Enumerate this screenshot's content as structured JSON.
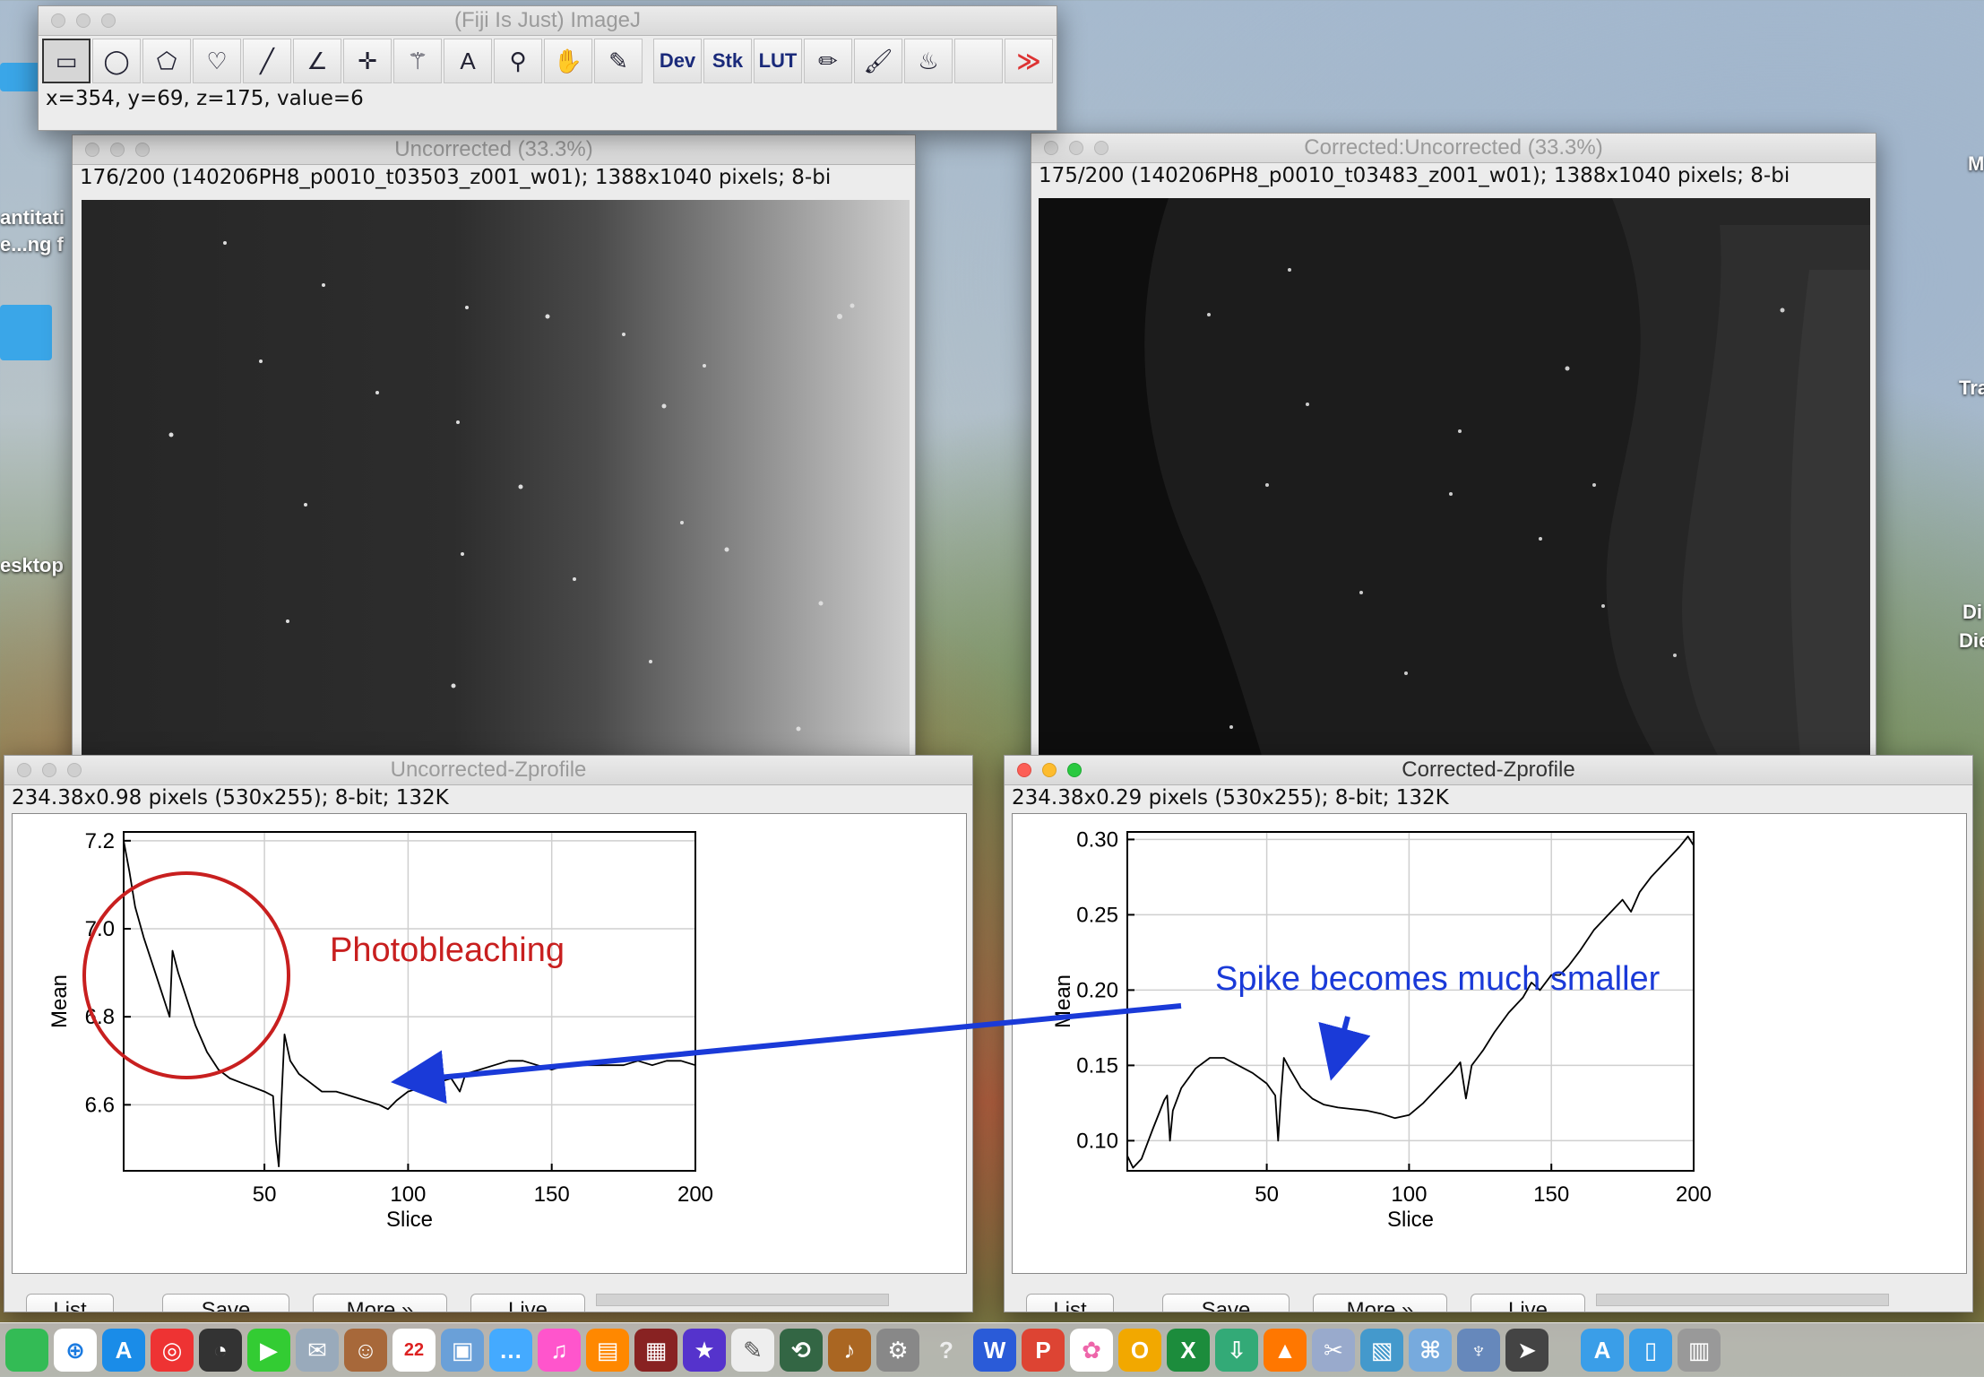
{
  "desktop": {
    "labels": [
      "antitati",
      "e...ng f",
      "esktop",
      "M",
      "Tra",
      "Di",
      "Die"
    ]
  },
  "imagej": {
    "title": "(Fiji Is Just) ImageJ",
    "status": "x=354, y=69, z=175, value=6",
    "tools": [
      {
        "name": "rectangle-tool-icon",
        "glyph": "▭"
      },
      {
        "name": "oval-tool-icon",
        "glyph": "◯"
      },
      {
        "name": "polygon-tool-icon",
        "glyph": "⬠"
      },
      {
        "name": "freehand-tool-icon",
        "glyph": "♡"
      },
      {
        "name": "line-tool-icon",
        "glyph": "╱"
      },
      {
        "name": "angle-tool-icon",
        "glyph": "∠"
      },
      {
        "name": "point-tool-icon",
        "glyph": "✛"
      },
      {
        "name": "wand-tool-icon",
        "glyph": "⚚"
      },
      {
        "name": "text-tool-icon",
        "glyph": "A"
      },
      {
        "name": "magnifier-tool-icon",
        "glyph": "⚲"
      },
      {
        "name": "hand-tool-icon",
        "glyph": "✋"
      },
      {
        "name": "dropper-tool-icon",
        "glyph": "✎"
      }
    ],
    "text_tools": [
      "Dev",
      "Stk",
      "LUT"
    ],
    "extra_tools": [
      {
        "name": "pencil-tool-icon",
        "glyph": "✏"
      },
      {
        "name": "brush-tool-icon",
        "glyph": "🖌"
      },
      {
        "name": "flood-fill-tool-icon",
        "glyph": "♨"
      }
    ],
    "more_glyph": "≫"
  },
  "uncorrected": {
    "title": "Uncorrected (33.3%)",
    "info": "176/200 (140206PH8_p0010_t03503_z001_w01); 1388x1040 pixels; 8-bi"
  },
  "corrected": {
    "title": "Corrected:Uncorrected (33.3%)",
    "info": "175/200 (140206PH8_p0010_t03483_z001_w01); 1388x1040 pixels; 8-bi"
  },
  "uz": {
    "title": "Uncorrected-Zprofile",
    "info": "234.38x0.98 pixels (530x255); 8-bit; 132K",
    "annotation": "Photobleaching",
    "buttons": [
      "List",
      "Save",
      "More »",
      "Live"
    ]
  },
  "cz": {
    "title": "Corrected-Zprofile",
    "info": "234.38x0.29 pixels (530x255); 8-bit; 132K",
    "annotation": "Spike becomes much smaller",
    "buttons": [
      "List",
      "Save",
      "More »",
      "Live"
    ]
  },
  "chart_data": [
    {
      "type": "line",
      "xlabel": "Slice",
      "ylabel": "Mean",
      "xlim": [
        1,
        200
      ],
      "ylim": [
        6.45,
        7.22
      ],
      "x_ticks": [
        "50",
        "100",
        "150",
        "200"
      ],
      "y_ticks": [
        "7.2",
        "7.0",
        "6.8",
        "6.6"
      ],
      "grid": true,
      "points": [
        [
          1,
          7.2
        ],
        [
          3,
          7.13
        ],
        [
          5,
          7.05
        ],
        [
          8,
          6.98
        ],
        [
          11,
          6.92
        ],
        [
          14,
          6.86
        ],
        [
          16,
          6.82
        ],
        [
          17,
          6.8
        ],
        [
          18,
          6.95
        ],
        [
          20,
          6.9
        ],
        [
          23,
          6.84
        ],
        [
          26,
          6.78
        ],
        [
          30,
          6.72
        ],
        [
          34,
          6.68
        ],
        [
          38,
          6.66
        ],
        [
          42,
          6.65
        ],
        [
          46,
          6.64
        ],
        [
          50,
          6.63
        ],
        [
          53,
          6.62
        ],
        [
          54,
          6.52
        ],
        [
          55,
          6.46
        ],
        [
          56,
          6.62
        ],
        [
          57,
          6.76
        ],
        [
          59,
          6.7
        ],
        [
          62,
          6.67
        ],
        [
          66,
          6.65
        ],
        [
          70,
          6.63
        ],
        [
          75,
          6.63
        ],
        [
          80,
          6.62
        ],
        [
          85,
          6.61
        ],
        [
          90,
          6.6
        ],
        [
          93,
          6.59
        ],
        [
          96,
          6.61
        ],
        [
          100,
          6.63
        ],
        [
          105,
          6.64
        ],
        [
          110,
          6.65
        ],
        [
          115,
          6.66
        ],
        [
          118,
          6.63
        ],
        [
          120,
          6.67
        ],
        [
          125,
          6.68
        ],
        [
          130,
          6.69
        ],
        [
          135,
          6.7
        ],
        [
          140,
          6.7
        ],
        [
          145,
          6.69
        ],
        [
          150,
          6.68
        ],
        [
          155,
          6.69
        ],
        [
          160,
          6.69
        ],
        [
          165,
          6.69
        ],
        [
          170,
          6.69
        ],
        [
          175,
          6.69
        ],
        [
          180,
          6.7
        ],
        [
          185,
          6.69
        ],
        [
          190,
          6.7
        ],
        [
          195,
          6.7
        ],
        [
          200,
          6.69
        ]
      ]
    },
    {
      "type": "line",
      "xlabel": "Slice",
      "ylabel": "Mean",
      "xlim": [
        1,
        200
      ],
      "ylim": [
        0.08,
        0.305
      ],
      "x_ticks": [
        "50",
        "100",
        "150",
        "200"
      ],
      "y_ticks": [
        "0.30",
        "0.25",
        "0.20",
        "0.15",
        "0.10"
      ],
      "grid": true,
      "points": [
        [
          1,
          0.09
        ],
        [
          3,
          0.082
        ],
        [
          6,
          0.088
        ],
        [
          10,
          0.108
        ],
        [
          14,
          0.127
        ],
        [
          15,
          0.13
        ],
        [
          16,
          0.1
        ],
        [
          17,
          0.12
        ],
        [
          20,
          0.135
        ],
        [
          25,
          0.148
        ],
        [
          30,
          0.155
        ],
        [
          35,
          0.155
        ],
        [
          40,
          0.15
        ],
        [
          45,
          0.145
        ],
        [
          50,
          0.138
        ],
        [
          53,
          0.13
        ],
        [
          54,
          0.1
        ],
        [
          55,
          0.13
        ],
        [
          56,
          0.155
        ],
        [
          58,
          0.148
        ],
        [
          62,
          0.135
        ],
        [
          66,
          0.128
        ],
        [
          70,
          0.124
        ],
        [
          75,
          0.122
        ],
        [
          80,
          0.121
        ],
        [
          85,
          0.12
        ],
        [
          90,
          0.118
        ],
        [
          95,
          0.115
        ],
        [
          100,
          0.117
        ],
        [
          105,
          0.125
        ],
        [
          110,
          0.135
        ],
        [
          115,
          0.145
        ],
        [
          118,
          0.152
        ],
        [
          120,
          0.128
        ],
        [
          122,
          0.15
        ],
        [
          126,
          0.16
        ],
        [
          130,
          0.172
        ],
        [
          135,
          0.185
        ],
        [
          140,
          0.195
        ],
        [
          143,
          0.205
        ],
        [
          146,
          0.2
        ],
        [
          150,
          0.21
        ],
        [
          153,
          0.21
        ],
        [
          156,
          0.216
        ],
        [
          160,
          0.226
        ],
        [
          165,
          0.24
        ],
        [
          170,
          0.25
        ],
        [
          175,
          0.26
        ],
        [
          178,
          0.252
        ],
        [
          181,
          0.265
        ],
        [
          185,
          0.275
        ],
        [
          190,
          0.285
        ],
        [
          195,
          0.295
        ],
        [
          198,
          0.302
        ],
        [
          200,
          0.296
        ]
      ]
    }
  ]
}
